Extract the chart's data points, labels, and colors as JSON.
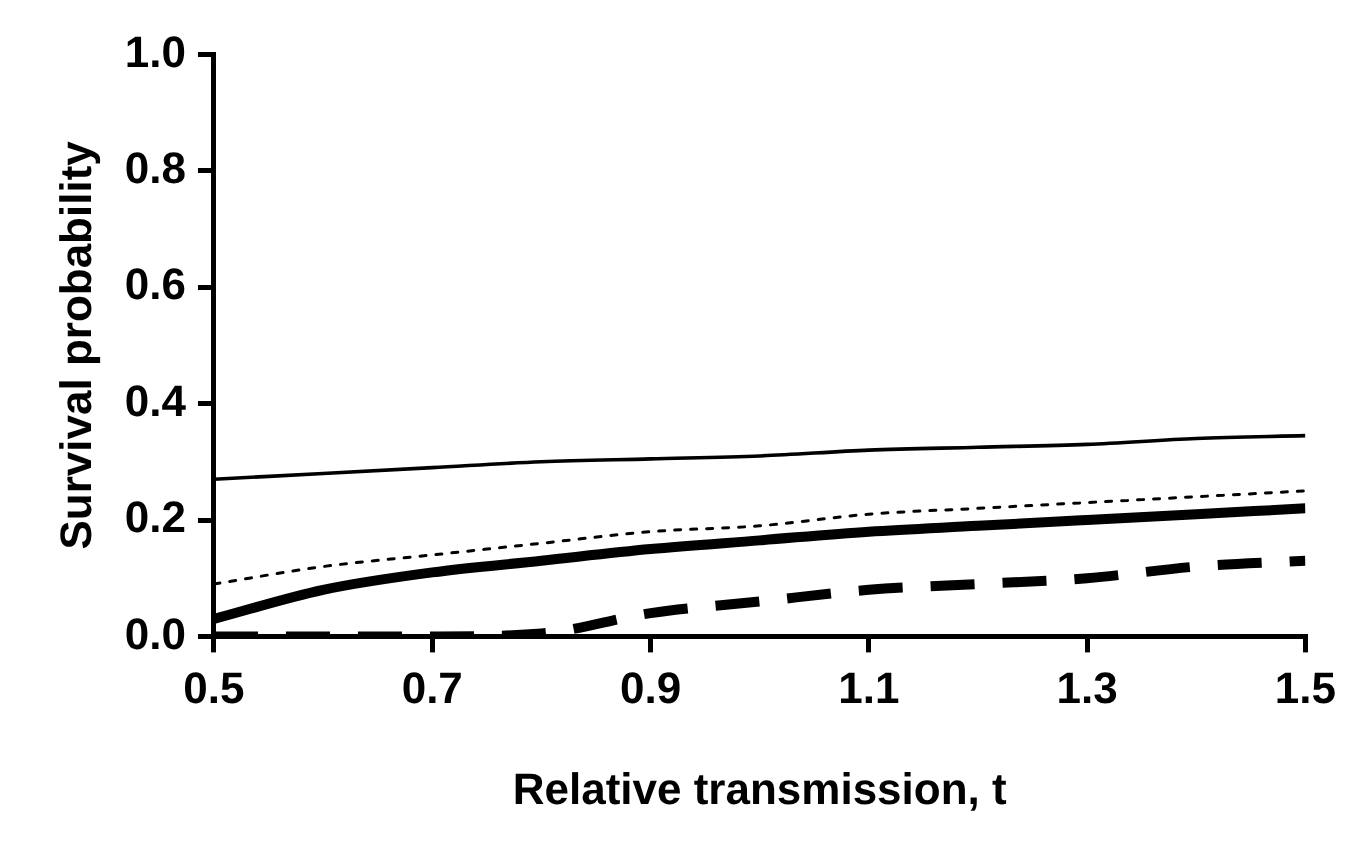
{
  "chart_data": {
    "type": "line",
    "xlabel": "Relative transmission, t",
    "ylabel": "Survival probability",
    "x": [
      0.5,
      0.6,
      0.7,
      0.8,
      0.9,
      1.0,
      1.1,
      1.2,
      1.3,
      1.4,
      1.5
    ],
    "series": [
      {
        "color": "#000000",
        "line_style": "solid",
        "values": [
          0.27,
          0.28,
          0.29,
          0.3,
          0.305,
          0.31,
          0.32,
          0.325,
          0.33,
          0.34,
          0.345
        ]
      },
      {
        "color": "#000000",
        "line_style": "dotted",
        "values": [
          0.09,
          0.12,
          0.14,
          0.16,
          0.18,
          0.19,
          0.21,
          0.22,
          0.23,
          0.24,
          0.25
        ]
      },
      {
        "color": "#000000",
        "line_style": "solid",
        "values": [
          0.03,
          0.08,
          0.11,
          0.13,
          0.15,
          0.165,
          0.18,
          0.19,
          0.2,
          0.21,
          0.22
        ]
      },
      {
        "color": "#000000",
        "line_style": "dashed",
        "values": [
          0,
          0,
          0,
          0.005,
          0.04,
          0.06,
          0.08,
          0.09,
          0.1,
          0.12,
          0.13
        ]
      }
    ],
    "xlim": [
      0.5,
      1.5
    ],
    "xticks": [
      0.5,
      0.7,
      0.9,
      1.1,
      1.3,
      1.5
    ],
    "ylim": [
      0,
      1
    ],
    "yticks": [
      {
        "value": 0,
        "label": "0.0"
      },
      {
        "value": 0.2,
        "label": "0.2"
      },
      {
        "value": 0.4,
        "label": "0.4"
      },
      {
        "value": 0.6,
        "label": "0.6"
      },
      {
        "value": 0.8,
        "label": "0.8"
      },
      {
        "value": 1,
        "label": "1.0"
      }
    ],
    "grid": false,
    "legend": false,
    "marker": "none"
  }
}
